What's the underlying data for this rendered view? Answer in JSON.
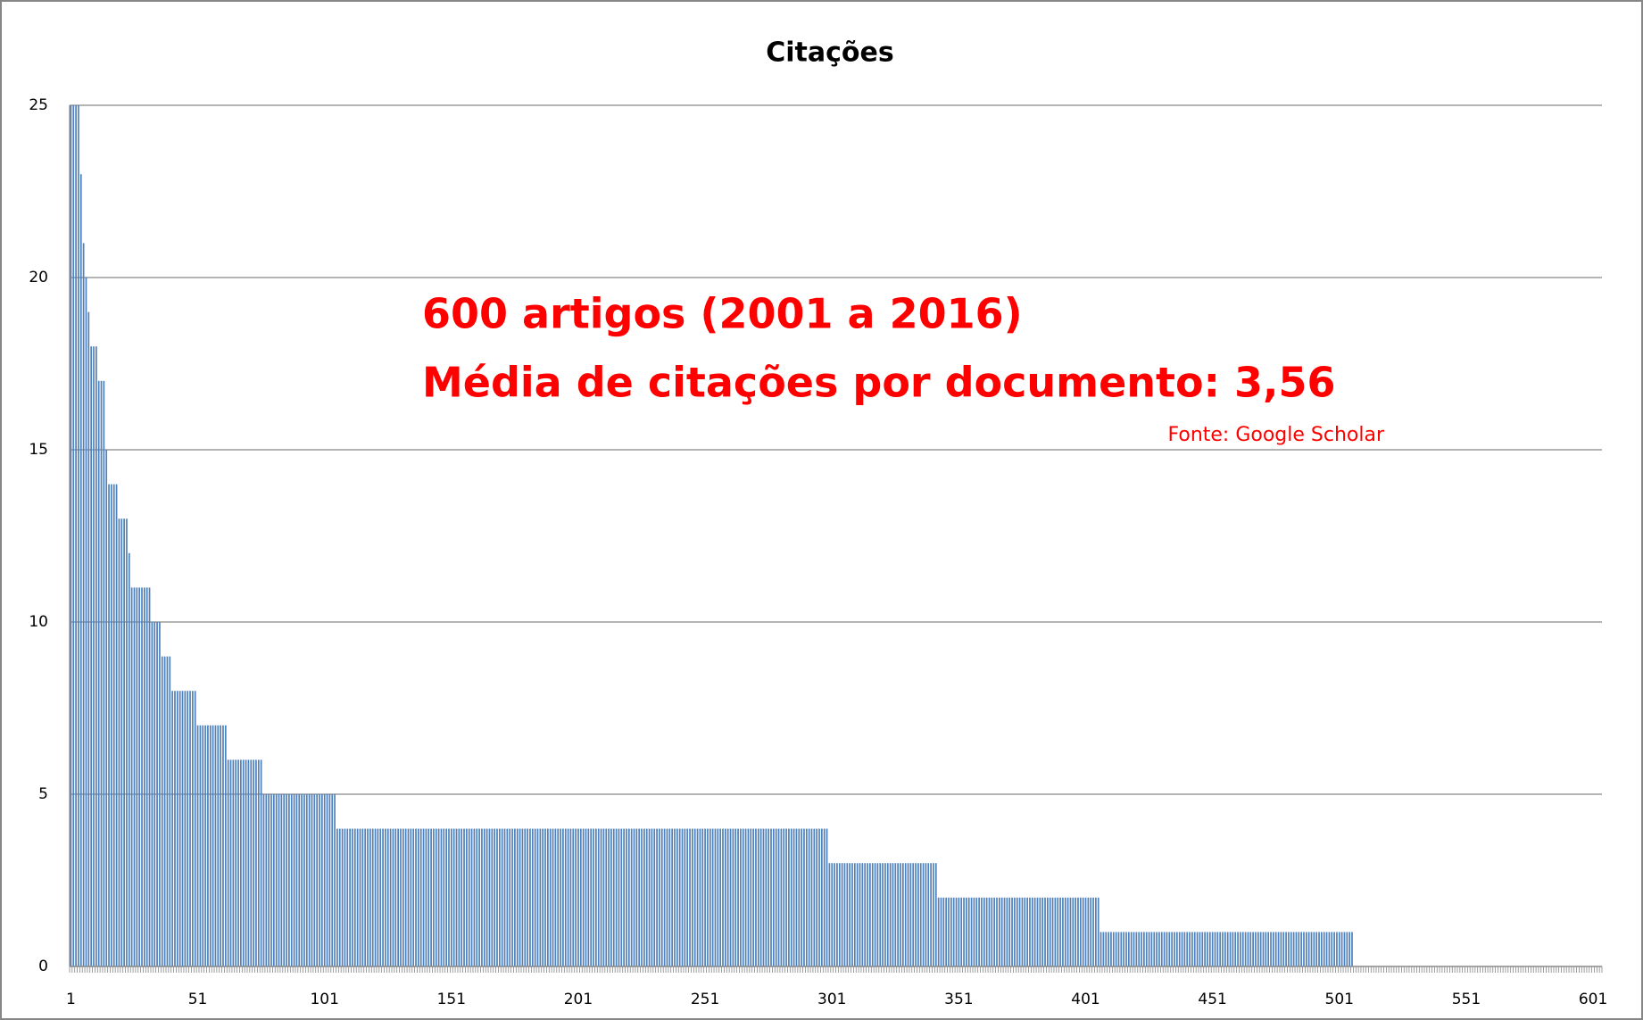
{
  "chart_data": {
    "type": "bar",
    "title": "Citações",
    "annotations": [
      "600 artigos (2001 a 2016)",
      "Média de citações por documento: 3,56",
      "Fonte: Google Scholar"
    ],
    "categories": [
      "1",
      null,
      null,
      null,
      null,
      null,
      null,
      null,
      null,
      null,
      null,
      null,
      null,
      null,
      null,
      null,
      null,
      null,
      null,
      null,
      null,
      null,
      null,
      null,
      null,
      null,
      null,
      null,
      null,
      null,
      null,
      null,
      null,
      null,
      null,
      null,
      null,
      null,
      null,
      null,
      null,
      null,
      null,
      null,
      null,
      null,
      null,
      null,
      null,
      null,
      "51",
      null,
      null,
      null,
      null,
      null,
      null,
      null,
      null,
      null,
      null,
      null,
      null,
      null,
      null,
      null,
      null,
      null,
      null,
      null,
      null,
      null,
      null,
      null,
      null,
      null,
      null,
      null,
      null,
      null,
      null,
      null,
      null,
      null,
      null,
      null,
      null,
      null,
      null,
      null,
      null,
      null,
      null,
      null,
      null,
      null,
      null,
      null,
      null,
      null,
      "101",
      null,
      null,
      null,
      null,
      null,
      null,
      null,
      null,
      null,
      null,
      null,
      null,
      null,
      null,
      null,
      null,
      null,
      null,
      null,
      null,
      null,
      null,
      null,
      null,
      null,
      null,
      null,
      null,
      null,
      null,
      null,
      null,
      null,
      null,
      null,
      null,
      null,
      null,
      null,
      null,
      null,
      null,
      null,
      null,
      null,
      null,
      null,
      null,
      null,
      "151",
      null,
      null,
      null,
      null,
      null,
      null,
      null,
      null,
      null,
      null,
      null,
      null,
      null,
      null,
      null,
      null,
      null,
      null,
      null,
      null,
      null,
      null,
      null,
      null,
      null,
      null,
      null,
      null,
      null,
      null,
      null,
      null,
      null,
      null,
      null,
      null,
      null,
      null,
      null,
      null,
      null,
      null,
      null,
      null,
      null,
      null,
      null,
      null,
      null,
      "201",
      null,
      null,
      null,
      null,
      null,
      null,
      null,
      null,
      null,
      null,
      null,
      null,
      null,
      null,
      null,
      null,
      null,
      null,
      null,
      null,
      null,
      null,
      null,
      null,
      null,
      null,
      null,
      null,
      null,
      null,
      null,
      null,
      null,
      null,
      null,
      null,
      null,
      null,
      null,
      null,
      null,
      null,
      null,
      null,
      null,
      null,
      null,
      null,
      null,
      "251",
      null,
      null,
      null,
      null,
      null,
      null,
      null,
      null,
      null,
      null,
      null,
      null,
      null,
      null,
      null,
      null,
      null,
      null,
      null,
      null,
      null,
      null,
      null,
      null,
      null,
      null,
      null,
      null,
      null,
      null,
      null,
      null,
      null,
      null,
      null,
      null,
      null,
      null,
      null,
      null,
      null,
      null,
      null,
      null,
      null,
      null,
      null,
      null,
      null,
      "301",
      null,
      null,
      null,
      null,
      null,
      null,
      null,
      null,
      null,
      null,
      null,
      null,
      null,
      null,
      null,
      null,
      null,
      null,
      null,
      null,
      null,
      null,
      null,
      null,
      null,
      null,
      null,
      null,
      null,
      null,
      null,
      null,
      null,
      null,
      null,
      null,
      null,
      null,
      null,
      null,
      null,
      null,
      null,
      null,
      null,
      null,
      null,
      null,
      null,
      "351",
      null,
      null,
      null,
      null,
      null,
      null,
      null,
      null,
      null,
      null,
      null,
      null,
      null,
      null,
      null,
      null,
      null,
      null,
      null,
      null,
      null,
      null,
      null,
      null,
      null,
      null,
      null,
      null,
      null,
      null,
      null,
      null,
      null,
      null,
      null,
      null,
      null,
      null,
      null,
      null,
      null,
      null,
      null,
      null,
      null,
      null,
      null,
      null,
      null,
      "401",
      null,
      null,
      null,
      null,
      null,
      null,
      null,
      null,
      null,
      null,
      null,
      null,
      null,
      null,
      null,
      null,
      null,
      null,
      null,
      null,
      null,
      null,
      null,
      null,
      null,
      null,
      null,
      null,
      null,
      null,
      null,
      null,
      null,
      null,
      null,
      null,
      null,
      null,
      null,
      null,
      null,
      null,
      null,
      null,
      null,
      null,
      null,
      null,
      null,
      "451",
      null,
      null,
      null,
      null,
      null,
      null,
      null,
      null,
      null,
      null,
      null,
      null,
      null,
      null,
      null,
      null,
      null,
      null,
      null,
      null,
      null,
      null,
      null,
      null,
      null,
      null,
      null,
      null,
      null,
      null,
      null,
      null,
      null,
      null,
      null,
      null,
      null,
      null,
      null,
      null,
      null,
      null,
      null,
      null,
      null,
      null,
      null,
      null,
      null,
      "501",
      null,
      null,
      null,
      null,
      null,
      null,
      null,
      null,
      null,
      null,
      null,
      null,
      null,
      null,
      null,
      null,
      null,
      null,
      null,
      null,
      null,
      null,
      null,
      null,
      null,
      null,
      null,
      null,
      null,
      null,
      null,
      null,
      null,
      null,
      null,
      null,
      null,
      null,
      null,
      null,
      null,
      null,
      null,
      null,
      null,
      null,
      null,
      null,
      null,
      "551",
      null,
      null,
      null,
      null,
      null,
      null,
      null,
      null,
      null,
      null,
      null,
      null,
      null,
      null,
      null,
      null,
      null,
      null,
      null,
      null,
      null,
      null,
      null,
      null,
      null,
      null,
      null,
      null,
      null,
      null,
      null,
      null,
      null,
      null,
      null,
      null,
      null,
      null,
      null,
      null,
      null,
      null,
      null,
      null,
      null,
      null,
      null,
      null,
      null,
      "601",
      null,
      null,
      null
    ],
    "values": [
      25,
      25,
      25,
      25,
      23,
      21,
      20,
      19,
      18,
      18,
      18,
      17,
      17,
      17,
      15,
      14,
      14,
      14,
      14,
      13,
      13,
      13,
      13,
      12,
      11,
      11,
      11,
      11,
      11,
      11,
      11,
      11,
      10,
      10,
      10,
      10,
      9,
      9,
      9,
      9,
      8,
      8,
      8,
      8,
      8,
      8,
      8,
      8,
      8,
      8,
      7,
      7,
      7,
      7,
      7,
      7,
      7,
      7,
      7,
      7,
      7,
      7,
      6,
      6,
      6,
      6,
      6,
      6,
      6,
      6,
      6,
      6,
      6,
      6,
      6,
      6,
      5,
      5,
      5,
      5,
      5,
      5,
      5,
      5,
      5,
      5,
      5,
      5,
      5,
      5,
      5,
      5,
      5,
      5,
      5,
      5,
      5,
      5,
      5,
      5,
      5,
      5,
      5,
      5,
      5,
      4,
      4,
      4,
      4,
      4,
      4,
      4,
      4,
      4,
      4,
      4,
      4,
      4,
      4,
      4,
      4,
      4,
      4,
      4,
      4,
      4,
      4,
      4,
      4,
      4,
      4,
      4,
      4,
      4,
      4,
      4,
      4,
      4,
      4,
      4,
      4,
      4,
      4,
      4,
      4,
      4,
      4,
      4,
      4,
      4,
      4,
      4,
      4,
      4,
      4,
      4,
      4,
      4,
      4,
      4,
      4,
      4,
      4,
      4,
      4,
      4,
      4,
      4,
      4,
      4,
      4,
      4,
      4,
      4,
      4,
      4,
      4,
      4,
      4,
      4,
      4,
      4,
      4,
      4,
      4,
      4,
      4,
      4,
      4,
      4,
      4,
      4,
      4,
      4,
      4,
      4,
      4,
      4,
      4,
      4,
      4,
      4,
      4,
      4,
      4,
      4,
      4,
      4,
      4,
      4,
      4,
      4,
      4,
      4,
      4,
      4,
      4,
      4,
      4,
      4,
      4,
      4,
      4,
      4,
      4,
      4,
      4,
      4,
      4,
      4,
      4,
      4,
      4,
      4,
      4,
      4,
      4,
      4,
      4,
      4,
      4,
      4,
      4,
      4,
      4,
      4,
      4,
      4,
      4,
      4,
      4,
      4,
      4,
      4,
      4,
      4,
      4,
      4,
      4,
      4,
      4,
      4,
      4,
      4,
      4,
      4,
      4,
      4,
      4,
      4,
      4,
      4,
      4,
      4,
      4,
      4,
      4,
      4,
      4,
      4,
      4,
      4,
      4,
      4,
      4,
      4,
      4,
      4,
      4,
      4,
      4,
      4,
      4,
      4,
      4,
      4,
      4,
      4,
      4,
      3,
      3,
      3,
      3,
      3,
      3,
      3,
      3,
      3,
      3,
      3,
      3,
      3,
      3,
      3,
      3,
      3,
      3,
      3,
      3,
      3,
      3,
      3,
      3,
      3,
      3,
      3,
      3,
      3,
      3,
      3,
      3,
      3,
      3,
      3,
      3,
      3,
      3,
      3,
      3,
      3,
      3,
      3,
      2,
      2,
      2,
      2,
      2,
      2,
      2,
      2,
      2,
      2,
      2,
      2,
      2,
      2,
      2,
      2,
      2,
      2,
      2,
      2,
      2,
      2,
      2,
      2,
      2,
      2,
      2,
      2,
      2,
      2,
      2,
      2,
      2,
      2,
      2,
      2,
      2,
      2,
      2,
      2,
      2,
      2,
      2,
      2,
      2,
      2,
      2,
      2,
      2,
      2,
      2,
      2,
      2,
      2,
      2,
      2,
      2,
      2,
      2,
      2,
      2,
      2,
      2,
      2,
      1,
      1,
      1,
      1,
      1,
      1,
      1,
      1,
      1,
      1,
      1,
      1,
      1,
      1,
      1,
      1,
      1,
      1,
      1,
      1,
      1,
      1,
      1,
      1,
      1,
      1,
      1,
      1,
      1,
      1,
      1,
      1,
      1,
      1,
      1,
      1,
      1,
      1,
      1,
      1,
      1,
      1,
      1,
      1,
      1,
      1,
      1,
      1,
      1,
      1,
      1,
      1,
      1,
      1,
      1,
      1,
      1,
      1,
      1,
      1,
      1,
      1,
      1,
      1,
      1,
      1,
      1,
      1,
      1,
      1,
      1,
      1,
      1,
      1,
      1,
      1,
      1,
      1,
      1,
      1,
      1,
      1,
      1,
      1,
      1,
      1,
      1,
      1,
      1,
      1,
      1,
      1,
      1,
      1,
      1,
      1,
      1,
      1,
      1,
      1,
      0,
      0,
      0,
      0,
      0,
      0,
      0,
      0,
      0,
      0,
      0,
      0,
      0,
      0,
      0,
      0,
      0,
      0,
      0,
      0,
      0,
      0,
      0,
      0,
      0,
      0,
      0,
      0,
      0,
      0,
      0,
      0,
      0,
      0,
      0,
      0,
      0,
      0,
      0,
      0,
      0,
      0,
      0,
      0,
      0,
      0,
      0,
      0,
      0,
      0,
      0,
      0,
      0,
      0,
      0,
      0,
      0,
      0,
      0,
      0,
      0,
      0,
      0,
      0,
      0,
      0,
      0,
      0,
      0,
      0,
      0,
      0,
      0,
      0,
      0,
      0,
      0,
      0,
      0,
      0,
      0,
      0,
      0,
      0,
      0,
      0,
      0,
      0,
      0,
      0,
      0,
      0,
      0,
      0,
      0,
      0,
      0,
      0
    ],
    "color": "#4f81bd",
    "annotation_color": "#ff0000",
    "ylim": [
      0,
      25
    ],
    "yticks": [
      0,
      5,
      10,
      15,
      20,
      25
    ],
    "grid": true
  }
}
